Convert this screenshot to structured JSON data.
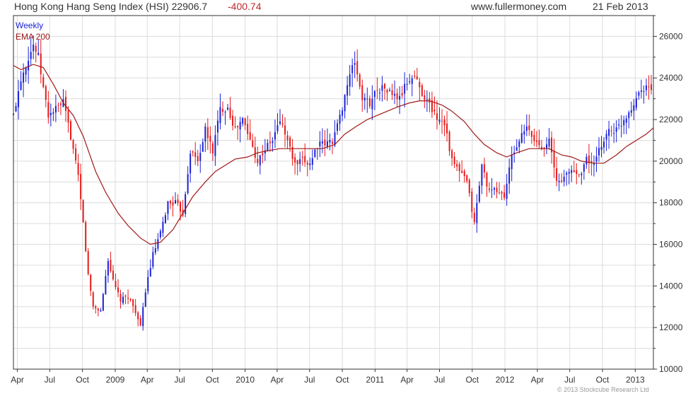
{
  "header": {
    "title": "Hong Kong Hang Seng Index (HSI) 22906.7",
    "change": "-400.74",
    "site": "www.fullermoney.com",
    "date": "21 Feb 2013"
  },
  "footer": {
    "copyright": "© 2013 Stockcube Research Ltd"
  },
  "colors": {
    "up": "#1a22d6",
    "down": "#e81a1a",
    "ema": "#a01818",
    "grid": "#dcdcdc",
    "frame": "#333333"
  },
  "chart_data": {
    "type": "candlestick",
    "title": "Hong Kong Hang Seng Index (HSI) 22906.7 -400.74",
    "legend": [
      "Weekly",
      "EMA 200"
    ],
    "legend_position": "top-left",
    "y_axis_position": "right",
    "grid": true,
    "ylim": [
      10000,
      27000
    ],
    "yticks": [
      10000,
      12000,
      14000,
      16000,
      18000,
      20000,
      22000,
      24000,
      26000
    ],
    "xlim": [
      "2008-03-21",
      "2013-02-21"
    ],
    "xticks": [
      {
        "date": "2008-04-01",
        "label": "Apr"
      },
      {
        "date": "2008-07-01",
        "label": "Jul"
      },
      {
        "date": "2008-10-01",
        "label": "Oct"
      },
      {
        "date": "2009-01-01",
        "label": "2009"
      },
      {
        "date": "2009-04-01",
        "label": "Apr"
      },
      {
        "date": "2009-07-01",
        "label": "Jul"
      },
      {
        "date": "2009-10-01",
        "label": "Oct"
      },
      {
        "date": "2010-01-01",
        "label": "2010"
      },
      {
        "date": "2010-04-01",
        "label": "Apr"
      },
      {
        "date": "2010-07-01",
        "label": "Jul"
      },
      {
        "date": "2010-10-01",
        "label": "Oct"
      },
      {
        "date": "2011-01-01",
        "label": "2011"
      },
      {
        "date": "2011-04-01",
        "label": "Apr"
      },
      {
        "date": "2011-07-01",
        "label": "Jul"
      },
      {
        "date": "2011-10-01",
        "label": "Oct"
      },
      {
        "date": "2012-01-01",
        "label": "2012"
      },
      {
        "date": "2012-04-01",
        "label": "Apr"
      },
      {
        "date": "2012-07-01",
        "label": "Jul"
      },
      {
        "date": "2012-10-01",
        "label": "Oct"
      },
      {
        "date": "2013-01-01",
        "label": "2013"
      }
    ],
    "series": [
      {
        "name": "Weekly",
        "type": "candlestick",
        "close_path": [
          [
            "2008-03-21",
            22200
          ],
          [
            "2008-03-28",
            22800
          ],
          [
            "2008-04-11",
            24000
          ],
          [
            "2008-05-02",
            25000
          ],
          [
            "2008-05-16",
            25600
          ],
          [
            "2008-05-30",
            25000
          ],
          [
            "2008-06-13",
            23500
          ],
          [
            "2008-06-27",
            22200
          ],
          [
            "2008-07-18",
            22500
          ],
          [
            "2008-08-08",
            22800
          ],
          [
            "2008-08-29",
            21200
          ],
          [
            "2008-09-19",
            19200
          ],
          [
            "2008-10-03",
            17000
          ],
          [
            "2008-10-17",
            14500
          ],
          [
            "2008-10-31",
            13000
          ],
          [
            "2008-11-21",
            12800
          ],
          [
            "2008-12-12",
            15300
          ],
          [
            "2008-12-26",
            14200
          ],
          [
            "2009-01-16",
            13300
          ],
          [
            "2009-02-06",
            13500
          ],
          [
            "2009-02-27",
            12800
          ],
          [
            "2009-03-13",
            12000
          ],
          [
            "2009-03-27",
            13800
          ],
          [
            "2009-04-17",
            15500
          ],
          [
            "2009-05-08",
            16500
          ],
          [
            "2009-05-29",
            18000
          ],
          [
            "2009-06-19",
            18000
          ],
          [
            "2009-07-10",
            17500
          ],
          [
            "2009-07-31",
            20500
          ],
          [
            "2009-08-21",
            20000
          ],
          [
            "2009-09-11",
            21500
          ],
          [
            "2009-10-02",
            20500
          ],
          [
            "2009-10-23",
            22500
          ],
          [
            "2009-11-13",
            22600
          ],
          [
            "2009-12-04",
            21500
          ],
          [
            "2009-12-25",
            22000
          ],
          [
            "2010-01-15",
            21000
          ],
          [
            "2010-02-05",
            20000
          ],
          [
            "2010-02-26",
            20600
          ],
          [
            "2010-03-19",
            21000
          ],
          [
            "2010-04-09",
            22000
          ],
          [
            "2010-04-30",
            21000
          ],
          [
            "2010-05-21",
            19800
          ],
          [
            "2010-06-11",
            20000
          ],
          [
            "2010-07-02",
            19900
          ],
          [
            "2010-07-23",
            20800
          ],
          [
            "2010-08-13",
            20800
          ],
          [
            "2010-09-03",
            21000
          ],
          [
            "2010-09-24",
            22100
          ],
          [
            "2010-10-15",
            23700
          ],
          [
            "2010-11-05",
            24800
          ],
          [
            "2010-11-26",
            23000
          ],
          [
            "2010-12-17",
            22800
          ],
          [
            "2011-01-07",
            23500
          ],
          [
            "2011-01-28",
            23500
          ],
          [
            "2011-02-18",
            23200
          ],
          [
            "2011-03-11",
            23000
          ],
          [
            "2011-04-01",
            23800
          ],
          [
            "2011-04-22",
            24100
          ],
          [
            "2011-05-13",
            23300
          ],
          [
            "2011-06-03",
            22700
          ],
          [
            "2011-06-24",
            22100
          ],
          [
            "2011-07-15",
            21900
          ],
          [
            "2011-08-05",
            20000
          ],
          [
            "2011-08-26",
            19500
          ],
          [
            "2011-09-16",
            19000
          ],
          [
            "2011-10-07",
            17000
          ],
          [
            "2011-10-28",
            19800
          ],
          [
            "2011-11-18",
            18500
          ],
          [
            "2011-12-09",
            18600
          ],
          [
            "2011-12-30",
            18300
          ],
          [
            "2012-01-20",
            20200
          ],
          [
            "2012-02-10",
            21000
          ],
          [
            "2012-03-02",
            21600
          ],
          [
            "2012-03-23",
            21000
          ],
          [
            "2012-04-13",
            20700
          ],
          [
            "2012-05-04",
            21000
          ],
          [
            "2012-05-25",
            19000
          ],
          [
            "2012-06-15",
            19200
          ],
          [
            "2012-07-06",
            19600
          ],
          [
            "2012-07-27",
            19300
          ],
          [
            "2012-08-17",
            20100
          ],
          [
            "2012-09-07",
            19800
          ],
          [
            "2012-09-28",
            20800
          ],
          [
            "2012-10-19",
            21500
          ],
          [
            "2012-11-09",
            21500
          ],
          [
            "2012-11-30",
            22000
          ],
          [
            "2012-12-21",
            22600
          ],
          [
            "2013-01-11",
            23300
          ],
          [
            "2013-02-01",
            23700
          ],
          [
            "2013-02-08",
            23500
          ],
          [
            "2013-02-15",
            23307
          ],
          [
            "2013-02-21",
            22907
          ]
        ]
      },
      {
        "name": "EMA 200",
        "type": "line",
        "points": [
          [
            "2008-03-21",
            24600
          ],
          [
            "2008-04-11",
            24400
          ],
          [
            "2008-05-16",
            24650
          ],
          [
            "2008-06-13",
            24500
          ],
          [
            "2008-07-11",
            23700
          ],
          [
            "2008-08-08",
            22800
          ],
          [
            "2008-09-05",
            22200
          ],
          [
            "2008-10-03",
            21200
          ],
          [
            "2008-11-07",
            19500
          ],
          [
            "2008-12-05",
            18500
          ],
          [
            "2009-01-09",
            17500
          ],
          [
            "2009-02-06",
            16900
          ],
          [
            "2009-03-13",
            16300
          ],
          [
            "2009-04-10",
            16000
          ],
          [
            "2009-05-08",
            16100
          ],
          [
            "2009-06-12",
            16700
          ],
          [
            "2009-07-10",
            17500
          ],
          [
            "2009-08-07",
            18300
          ],
          [
            "2009-09-11",
            19000
          ],
          [
            "2009-10-09",
            19500
          ],
          [
            "2009-11-06",
            19800
          ],
          [
            "2009-12-04",
            20100
          ],
          [
            "2010-01-08",
            20200
          ],
          [
            "2010-02-05",
            20400
          ],
          [
            "2010-03-05",
            20500
          ],
          [
            "2010-04-09",
            20600
          ],
          [
            "2010-05-07",
            20600
          ],
          [
            "2010-06-04",
            20600
          ],
          [
            "2010-07-09",
            20600
          ],
          [
            "2010-08-06",
            20600
          ],
          [
            "2010-09-10",
            20800
          ],
          [
            "2010-10-08",
            21300
          ],
          [
            "2010-11-12",
            21700
          ],
          [
            "2010-12-10",
            22000
          ],
          [
            "2011-01-07",
            22200
          ],
          [
            "2011-02-04",
            22400
          ],
          [
            "2011-03-04",
            22600
          ],
          [
            "2011-04-08",
            22800
          ],
          [
            "2011-05-06",
            22900
          ],
          [
            "2011-06-03",
            22900
          ],
          [
            "2011-07-08",
            22700
          ],
          [
            "2011-08-05",
            22400
          ],
          [
            "2011-09-09",
            21900
          ],
          [
            "2011-10-07",
            21300
          ],
          [
            "2011-11-04",
            20800
          ],
          [
            "2011-12-09",
            20400
          ],
          [
            "2012-01-06",
            20200
          ],
          [
            "2012-02-03",
            20400
          ],
          [
            "2012-03-09",
            20600
          ],
          [
            "2012-04-06",
            20600
          ],
          [
            "2012-05-04",
            20600
          ],
          [
            "2012-06-08",
            20300
          ],
          [
            "2012-07-06",
            20200
          ],
          [
            "2012-08-03",
            20000
          ],
          [
            "2012-09-07",
            19900
          ],
          [
            "2012-10-05",
            19900
          ],
          [
            "2012-11-09",
            20300
          ],
          [
            "2012-12-07",
            20700
          ],
          [
            "2013-01-04",
            21000
          ],
          [
            "2013-02-01",
            21300
          ],
          [
            "2013-02-21",
            21600
          ]
        ]
      }
    ]
  }
}
